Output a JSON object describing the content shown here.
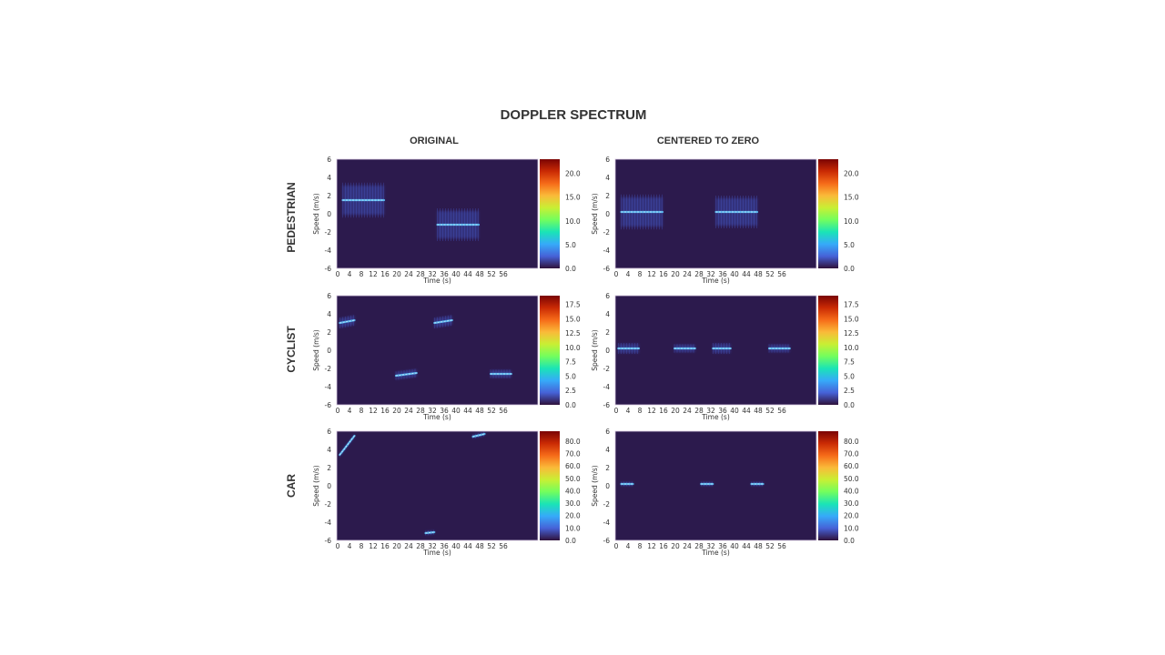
{
  "title": "DOPPLER SPECTRUM",
  "columns": [
    "ORIGINAL",
    "CENTERED TO ZERO"
  ],
  "rows": [
    "PEDESTRIAN",
    "CYCLIST",
    "CAR"
  ],
  "colors": {
    "background": "#2c1a4d",
    "colormap": [
      "#30123b",
      "#4662d7",
      "#36aaf9",
      "#1ae4b6",
      "#72fe5e",
      "#c8ef34",
      "#faba39",
      "#f66b19",
      "#ca2a04",
      "#7a0403"
    ]
  },
  "chart_data": {
    "type": "heatmap",
    "xlabel": "Time (s)",
    "ylabel": "Speed (m/s)",
    "xticks": [
      0,
      4,
      8,
      12,
      16,
      20,
      24,
      28,
      32,
      36,
      40,
      44,
      48,
      52,
      56
    ],
    "yticks": [
      6,
      4,
      2,
      0,
      -2,
      -4,
      -6
    ],
    "xlim": [
      0,
      68
    ],
    "ylim": [
      -6,
      6
    ],
    "panels": [
      {
        "row": "PEDESTRIAN",
        "column": "ORIGINAL",
        "cbar_max": 23,
        "cbar_ticks": [
          "0.0",
          "5.0",
          "10.0",
          "15.0",
          "20.0"
        ],
        "cbar_values": [
          0,
          5,
          10,
          15,
          20
        ],
        "features": [
          {
            "t": [
              2,
              16
            ],
            "v": [
              1.5,
              1.5
            ],
            "spread": 1.6
          },
          {
            "t": [
              34,
              48
            ],
            "v": [
              -1.2,
              -1.2
            ],
            "spread": 1.5
          }
        ]
      },
      {
        "row": "PEDESTRIAN",
        "column": "CENTERED TO ZERO",
        "cbar_max": 23,
        "cbar_ticks": [
          "0.0",
          "5.0",
          "10.0",
          "15.0",
          "20.0"
        ],
        "cbar_values": [
          0,
          5,
          10,
          15,
          20
        ],
        "features": [
          {
            "t": [
              2,
              16
            ],
            "v": [
              0.2,
              0.2
            ],
            "spread": 1.6
          },
          {
            "t": [
              34,
              48
            ],
            "v": [
              0.2,
              0.2
            ],
            "spread": 1.5
          }
        ]
      },
      {
        "row": "CYCLIST",
        "column": "ORIGINAL",
        "cbar_max": 19,
        "cbar_ticks": [
          "0.0",
          "2.5",
          "5.0",
          "7.5",
          "10.0",
          "12.5",
          "15.0",
          "17.5"
        ],
        "cbar_values": [
          0,
          2.5,
          5,
          7.5,
          10,
          12.5,
          15,
          17.5
        ],
        "features": [
          {
            "t": [
              1,
              6
            ],
            "v": [
              3.0,
              3.3
            ],
            "spread": 0.5
          },
          {
            "t": [
              20,
              27
            ],
            "v": [
              -2.8,
              -2.5
            ],
            "spread": 0.4
          },
          {
            "t": [
              33,
              39
            ],
            "v": [
              3.0,
              3.3
            ],
            "spread": 0.5
          },
          {
            "t": [
              52,
              59
            ],
            "v": [
              -2.6,
              -2.6
            ],
            "spread": 0.4
          }
        ]
      },
      {
        "row": "CYCLIST",
        "column": "CENTERED TO ZERO",
        "cbar_max": 19,
        "cbar_ticks": [
          "0.0",
          "2.5",
          "5.0",
          "7.5",
          "10.0",
          "12.5",
          "15.0",
          "17.5"
        ],
        "cbar_values": [
          0,
          2.5,
          5,
          7.5,
          10,
          12.5,
          15,
          17.5
        ],
        "features": [
          {
            "t": [
              1,
              8
            ],
            "v": [
              0.2,
              0.2
            ],
            "spread": 0.5
          },
          {
            "t": [
              20,
              27
            ],
            "v": [
              0.2,
              0.2
            ],
            "spread": 0.4
          },
          {
            "t": [
              33,
              39
            ],
            "v": [
              0.2,
              0.2
            ],
            "spread": 0.5
          },
          {
            "t": [
              52,
              59
            ],
            "v": [
              0.2,
              0.2
            ],
            "spread": 0.4
          }
        ]
      },
      {
        "row": "CAR",
        "column": "ORIGINAL",
        "cbar_max": 88,
        "cbar_ticks": [
          "0.0",
          "10.0",
          "20.0",
          "30.0",
          "40.0",
          "50.0",
          "60.0",
          "70.0",
          "80.0"
        ],
        "cbar_values": [
          0,
          10,
          20,
          30,
          40,
          50,
          60,
          70,
          80
        ],
        "features": [
          {
            "t": [
              1,
              6
            ],
            "v": [
              3.4,
              5.5
            ],
            "spread": 0.2
          },
          {
            "t": [
              30,
              33
            ],
            "v": [
              -5.2,
              -5.1
            ],
            "spread": 0.2
          },
          {
            "t": [
              46,
              50
            ],
            "v": [
              5.4,
              5.7
            ],
            "spread": 0.2
          }
        ]
      },
      {
        "row": "CAR",
        "column": "CENTERED TO ZERO",
        "cbar_max": 88,
        "cbar_ticks": [
          "0.0",
          "10.0",
          "20.0",
          "30.0",
          "40.0",
          "50.0",
          "60.0",
          "70.0",
          "80.0"
        ],
        "cbar_values": [
          0,
          10,
          20,
          30,
          40,
          50,
          60,
          70,
          80
        ],
        "features": [
          {
            "t": [
              2,
              6
            ],
            "v": [
              0.2,
              0.2
            ],
            "spread": 0.2
          },
          {
            "t": [
              29,
              33
            ],
            "v": [
              0.2,
              0.2
            ],
            "spread": 0.2
          },
          {
            "t": [
              46,
              50
            ],
            "v": [
              0.2,
              0.2
            ],
            "spread": 0.2
          }
        ]
      }
    ]
  }
}
